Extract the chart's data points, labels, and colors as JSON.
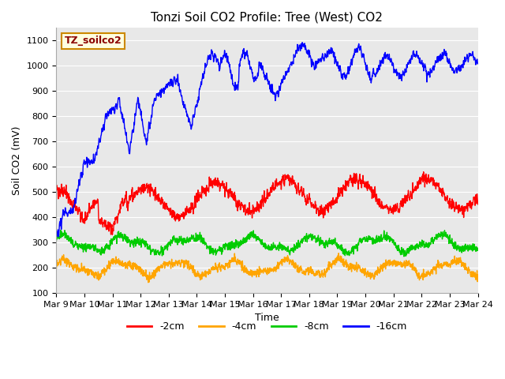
{
  "title": "Tonzi Soil CO2 Profile: Tree (West) CO2",
  "ylabel": "Soil CO2 (mV)",
  "xlabel": "Time",
  "watermark": "TZ_soilco2",
  "ylim": [
    100,
    1150
  ],
  "yticks": [
    100,
    200,
    300,
    400,
    500,
    600,
    700,
    800,
    900,
    1000,
    1100
  ],
  "legend_labels": [
    "-2cm",
    "-4cm",
    "-8cm",
    "-16cm"
  ],
  "legend_colors": [
    "#ff0000",
    "#ffa500",
    "#00cc00",
    "#0000ff"
  ],
  "bg_color": "#e8e8e8",
  "fig_color": "#ffffff",
  "n_days": 15,
  "start_day": 9,
  "title_fontsize": 11,
  "label_fontsize": 9,
  "tick_fontsize": 8,
  "watermark_fontsize": 9,
  "line_width": 1.0
}
